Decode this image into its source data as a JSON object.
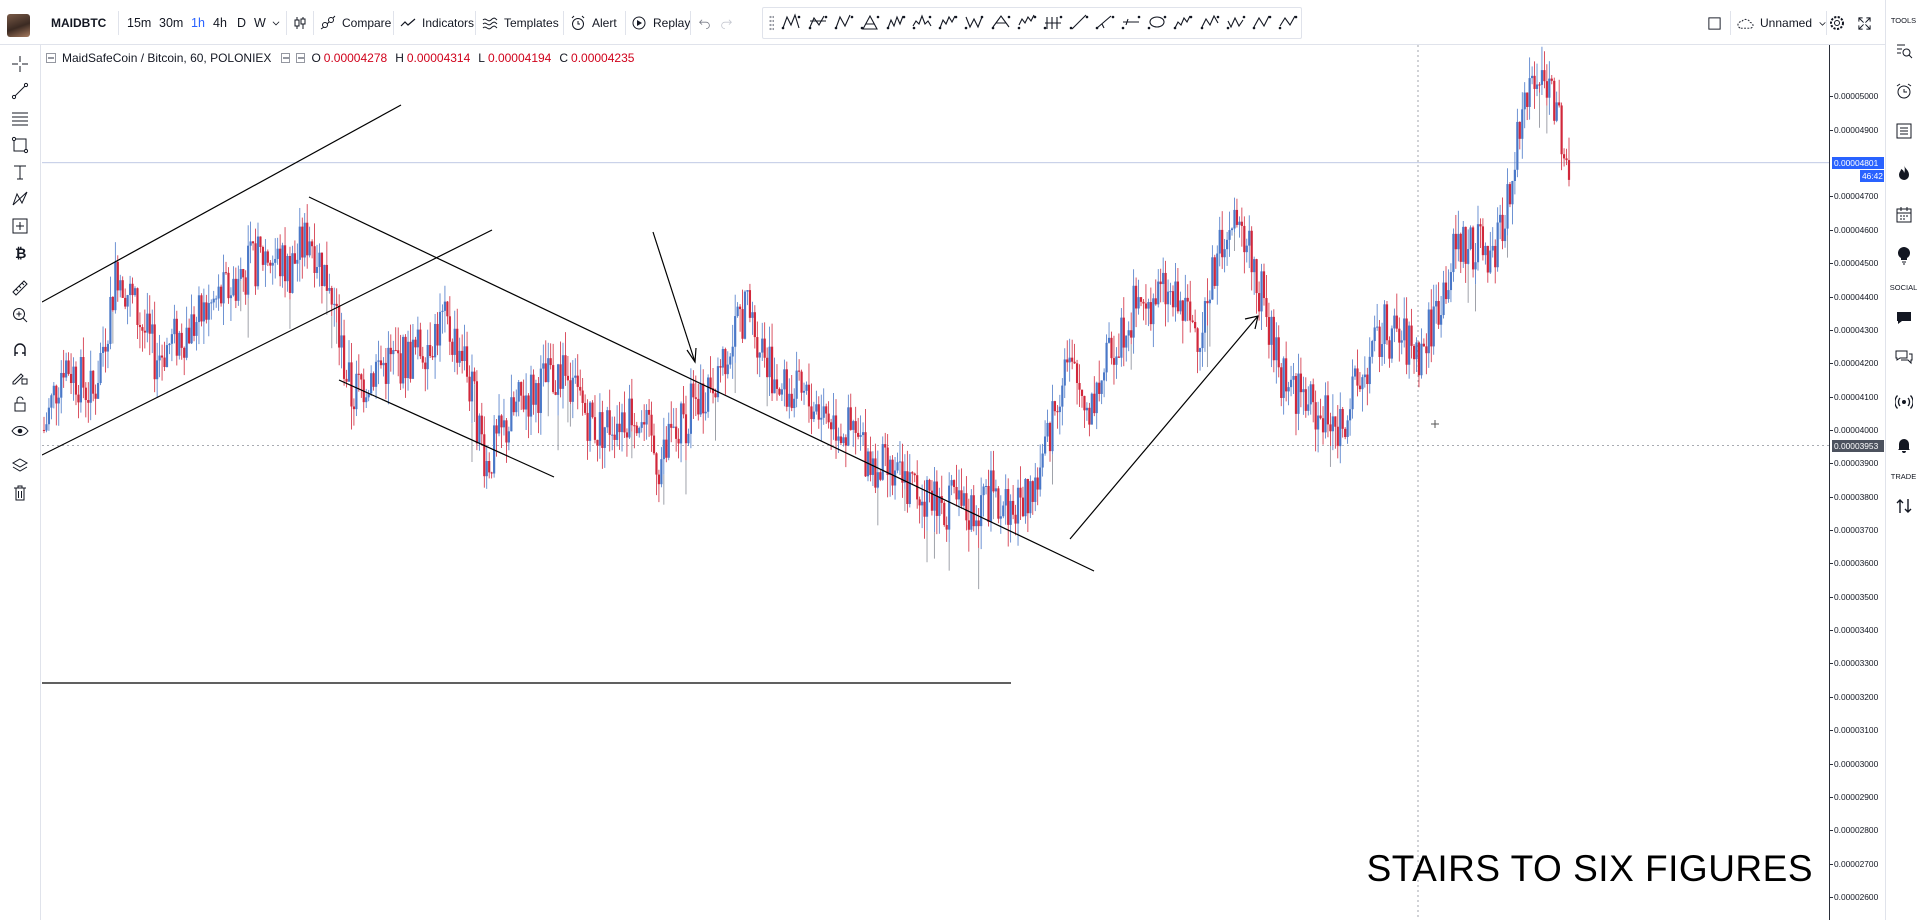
{
  "toolbar": {
    "symbol": "MAIDBTC",
    "timeframes": [
      "15m",
      "30m",
      "1h",
      "4h",
      "D",
      "W"
    ],
    "active_timeframe": "1h",
    "compare_label": "Compare",
    "indicators_label": "Indicators",
    "templates_label": "Templates",
    "alert_label": "Alert",
    "replay_label": "Replay",
    "layout_name": "Unnamed"
  },
  "drawing_tools": [
    "xabcd-pattern-icon",
    "cypher-pattern-icon",
    "abcd-pattern-icon",
    "triangle-pattern-icon",
    "three-drives-pattern-icon",
    "head-shoulders-icon",
    "elliott-impulse-icon",
    "elliott-correction-icon",
    "elliott-triangle-icon",
    "elliott-double-combo-icon",
    "elliott-triple-combo-icon",
    "cyclic-lines-icon",
    "time-cycles-icon",
    "sine-line-icon",
    "ellipse-icon",
    "elliott-wave-12345-icon",
    "elliott-wave-abc-icon",
    "elliott-wave-wxyz-icon",
    "elliott-wave-ac-icon",
    "elliott-wave-wy-icon"
  ],
  "legend": {
    "title": "MaidSafeCoin / Bitcoin, 60, POLONIEX",
    "open_label": "O",
    "open": "0.00004278",
    "high_label": "H",
    "high": "0.00004314",
    "low_label": "L",
    "low": "0.00004194",
    "close_label": "C",
    "close": "0.00004235"
  },
  "price_axis": {
    "ticks": [
      "0.00005000",
      "0.00004900",
      "0.00004700",
      "0.00004600",
      "0.00004500",
      "0.00004400",
      "0.00004300",
      "0.00004200",
      "0.00004100",
      "0.00004000",
      "0.00003900",
      "0.00003800",
      "0.00003700",
      "0.00003600",
      "0.00003500",
      "0.00003400",
      "0.00003300",
      "0.00003200",
      "0.00003100",
      "0.00003000",
      "0.00002900",
      "0.00002800",
      "0.00002700",
      "0.00002600"
    ],
    "last_price": "0.00004801",
    "countdown": "46:42",
    "crosshair_price": "0.00003953"
  },
  "sidebar_labels": {
    "tools": "TOOLS",
    "social": "SOCIAL",
    "trade": "TRADE"
  },
  "overlay_text": "STAIRS TO SIX FIGURES",
  "colors": {
    "up": "#4a78c8",
    "down": "#d1283b",
    "wick": "#9598a1",
    "accent": "#2962ff"
  },
  "chart_data": {
    "type": "candlestick",
    "symbol": "MaidSafeCoin / Bitcoin",
    "interval": "60",
    "exchange": "POLONIEX",
    "ylim": [
      2.57e-05,
      5.1e-05
    ],
    "price_path": [
      {
        "i": 0,
        "p": 4e-05
      },
      {
        "i": 8,
        "p": 4.21e-05
      },
      {
        "i": 20,
        "p": 4.1e-05
      },
      {
        "i": 30,
        "p": 4.49e-05
      },
      {
        "i": 45,
        "p": 4.22e-05
      },
      {
        "i": 60,
        "p": 4.31e-05
      },
      {
        "i": 75,
        "p": 4.42e-05
      },
      {
        "i": 90,
        "p": 4.53e-05
      },
      {
        "i": 100,
        "p": 4.48e-05
      },
      {
        "i": 108,
        "p": 4.59e-05
      },
      {
        "i": 115,
        "p": 4.45e-05
      },
      {
        "i": 125,
        "p": 4.1e-05
      },
      {
        "i": 135,
        "p": 4.19e-05
      },
      {
        "i": 150,
        "p": 4.22e-05
      },
      {
        "i": 162,
        "p": 4.32e-05
      },
      {
        "i": 170,
        "p": 4.24e-05
      },
      {
        "i": 180,
        "p": 3.9e-05
      },
      {
        "i": 195,
        "p": 4.1e-05
      },
      {
        "i": 210,
        "p": 4.17e-05
      },
      {
        "i": 225,
        "p": 4e-05
      },
      {
        "i": 240,
        "p": 4.07e-05
      },
      {
        "i": 250,
        "p": 3.9e-05
      },
      {
        "i": 262,
        "p": 4.05e-05
      },
      {
        "i": 275,
        "p": 4.2e-05
      },
      {
        "i": 285,
        "p": 4.37e-05
      },
      {
        "i": 300,
        "p": 4.12e-05
      },
      {
        "i": 315,
        "p": 4.07e-05
      },
      {
        "i": 330,
        "p": 3.97e-05
      },
      {
        "i": 345,
        "p": 3.85e-05
      },
      {
        "i": 360,
        "p": 3.8e-05
      },
      {
        "i": 375,
        "p": 3.75e-05
      },
      {
        "i": 385,
        "p": 3.8e-05
      },
      {
        "i": 395,
        "p": 3.76e-05
      },
      {
        "i": 405,
        "p": 3.86e-05
      },
      {
        "i": 415,
        "p": 4.2e-05
      },
      {
        "i": 425,
        "p": 4.07e-05
      },
      {
        "i": 440,
        "p": 4.34e-05
      },
      {
        "i": 455,
        "p": 4.41e-05
      },
      {
        "i": 470,
        "p": 4.3e-05
      },
      {
        "i": 480,
        "p": 4.6e-05
      },
      {
        "i": 490,
        "p": 4.55e-05
      },
      {
        "i": 502,
        "p": 4.18e-05
      },
      {
        "i": 515,
        "p": 4.07e-05
      },
      {
        "i": 525,
        "p": 4e-05
      },
      {
        "i": 535,
        "p": 4.14e-05
      },
      {
        "i": 545,
        "p": 4.3e-05
      },
      {
        "i": 560,
        "p": 4.23e-05
      },
      {
        "i": 575,
        "p": 4.56e-05
      },
      {
        "i": 590,
        "p": 4.52e-05
      },
      {
        "i": 600,
        "p": 4.9e-05
      },
      {
        "i": 608,
        "p": 5.09e-05
      },
      {
        "i": 615,
        "p": 4.98e-05
      },
      {
        "i": 620,
        "p": 4.78e-05
      }
    ],
    "drawings": [
      {
        "kind": "trend-line",
        "label": "upper channel line"
      },
      {
        "kind": "trend-line",
        "label": "lower channel line"
      },
      {
        "kind": "trend-line",
        "label": "descending channel top"
      },
      {
        "kind": "trend-line",
        "label": "descending channel bottom"
      },
      {
        "kind": "arrow",
        "label": "down arrow"
      },
      {
        "kind": "arrow",
        "label": "up arrow"
      },
      {
        "kind": "horizontal-ray",
        "label": "support line"
      }
    ]
  }
}
